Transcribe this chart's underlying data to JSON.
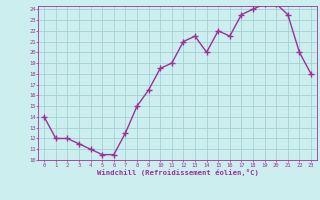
{
  "x": [
    0,
    1,
    2,
    3,
    4,
    5,
    6,
    7,
    8,
    9,
    10,
    11,
    12,
    13,
    14,
    15,
    16,
    17,
    18,
    19,
    20,
    21,
    22,
    23
  ],
  "y": [
    14,
    12,
    12,
    11.5,
    11,
    10.5,
    10.5,
    12.5,
    15,
    16.5,
    18.5,
    19,
    21,
    21.5,
    20,
    22,
    21.5,
    23.5,
    24,
    24.5,
    24.5,
    23.5,
    20,
    18
  ],
  "line_color": "#993399",
  "marker": "+",
  "marker_color": "#993399",
  "bg_color": "#cceeee",
  "grid_color": "#99cccc",
  "xlabel": "Windchill (Refroidissement éolien,°C)",
  "xlabel_color": "#993399",
  "tick_color": "#993399",
  "ylim": [
    10,
    24
  ],
  "xlim": [
    -0.5,
    23.5
  ],
  "yticks": [
    10,
    11,
    12,
    13,
    14,
    15,
    16,
    17,
    18,
    19,
    20,
    21,
    22,
    23,
    24
  ],
  "xticks": [
    0,
    1,
    2,
    3,
    4,
    5,
    6,
    7,
    8,
    9,
    10,
    11,
    12,
    13,
    14,
    15,
    16,
    17,
    18,
    19,
    20,
    21,
    22,
    23
  ],
  "line_width": 1.0,
  "marker_size": 4,
  "font_size_ticks": 4.0,
  "font_size_xlabel": 5.2
}
